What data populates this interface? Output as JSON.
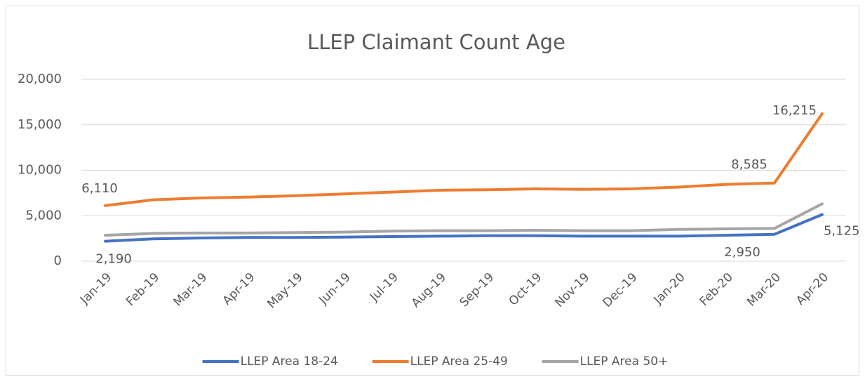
{
  "chart_data": {
    "type": "line",
    "title": "LLEP Claimant Count Age",
    "categories": [
      "Jan-19",
      "Feb-19",
      "Mar-19",
      "Apr-19",
      "May-19",
      "Jun-19",
      "Jul-19",
      "Aug-19",
      "Sep-19",
      "Oct-19",
      "Nov-19",
      "Dec-19",
      "Jan-20",
      "Feb-20",
      "Mar-20",
      "Apr-20"
    ],
    "series": [
      {
        "name": "LLEP Area 18-24",
        "color": "#4472c4",
        "values": [
          2190,
          2450,
          2550,
          2600,
          2600,
          2650,
          2700,
          2750,
          2800,
          2800,
          2750,
          2750,
          2750,
          2850,
          2950,
          5125
        ],
        "value_labels": [
          "2,190",
          null,
          null,
          null,
          null,
          null,
          null,
          null,
          null,
          null,
          null,
          null,
          null,
          null,
          "2,950",
          "5,125"
        ]
      },
      {
        "name": "LLEP Area 25-49",
        "color": "#ed7d31",
        "values": [
          6110,
          6750,
          6950,
          7050,
          7200,
          7400,
          7600,
          7800,
          7850,
          7950,
          7900,
          7950,
          8150,
          8450,
          8585,
          16215
        ],
        "value_labels": [
          "6,110",
          null,
          null,
          null,
          null,
          null,
          null,
          null,
          null,
          null,
          null,
          null,
          null,
          null,
          "8,585",
          "16,215"
        ]
      },
      {
        "name": "LLEP Area 50+",
        "color": "#a5a5a5",
        "values": [
          2850,
          3050,
          3100,
          3100,
          3150,
          3200,
          3300,
          3350,
          3350,
          3400,
          3350,
          3350,
          3500,
          3550,
          3600,
          6300
        ]
      }
    ],
    "ylim": [
      0,
      20000
    ],
    "yticks": [
      0,
      {
        "value": 5000,
        "label": "5,000"
      },
      {
        "value": 10000,
        "label": "10,000"
      },
      {
        "value": 15000,
        "label": "15,000"
      },
      {
        "value": 20000,
        "label": "20,000"
      }
    ],
    "grid": true,
    "legend": "bottom"
  }
}
